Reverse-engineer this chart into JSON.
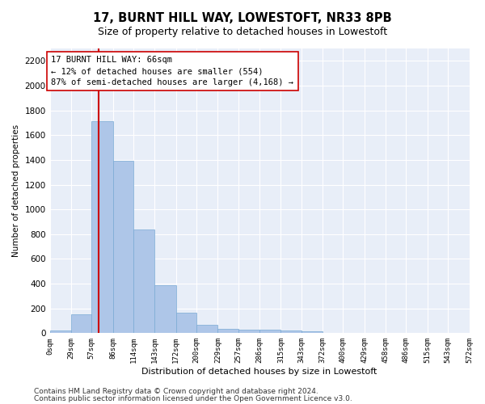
{
  "title": "17, BURNT HILL WAY, LOWESTOFT, NR33 8PB",
  "subtitle": "Size of property relative to detached houses in Lowestoft",
  "xlabel": "Distribution of detached houses by size in Lowestoft",
  "ylabel": "Number of detached properties",
  "bar_edges": [
    0,
    29,
    57,
    86,
    114,
    143,
    172,
    200,
    229,
    257,
    286,
    315,
    343,
    372,
    400,
    429,
    458,
    486,
    515,
    543,
    572
  ],
  "bar_heights": [
    20,
    155,
    1710,
    1395,
    835,
    385,
    163,
    65,
    38,
    28,
    27,
    20,
    12,
    0,
    0,
    0,
    0,
    0,
    0,
    0
  ],
  "bar_color": "#aec6e8",
  "bar_edgecolor": "#7aaad4",
  "tick_labels": [
    "0sqm",
    "29sqm",
    "57sqm",
    "86sqm",
    "114sqm",
    "143sqm",
    "172sqm",
    "200sqm",
    "229sqm",
    "257sqm",
    "286sqm",
    "315sqm",
    "343sqm",
    "372sqm",
    "400sqm",
    "429sqm",
    "458sqm",
    "486sqm",
    "515sqm",
    "543sqm",
    "572sqm"
  ],
  "vline_x": 66,
  "vline_color": "#cc0000",
  "annotation_text": "17 BURNT HILL WAY: 66sqm\n← 12% of detached houses are smaller (554)\n87% of semi-detached houses are larger (4,168) →",
  "annotation_box_color": "#ffffff",
  "annotation_box_edgecolor": "#cc0000",
  "ylim": [
    0,
    2300
  ],
  "yticks": [
    0,
    200,
    400,
    600,
    800,
    1000,
    1200,
    1400,
    1600,
    1800,
    2000,
    2200
  ],
  "background_color": "#e8eef8",
  "grid_color": "#ffffff",
  "footer_line1": "Contains HM Land Registry data © Crown copyright and database right 2024.",
  "footer_line2": "Contains public sector information licensed under the Open Government Licence v3.0.",
  "title_fontsize": 10.5,
  "subtitle_fontsize": 9,
  "annotation_fontsize": 7.5,
  "footer_fontsize": 6.5,
  "ylabel_fontsize": 7.5,
  "xlabel_fontsize": 8,
  "ytick_fontsize": 7.5,
  "xtick_fontsize": 6.5
}
